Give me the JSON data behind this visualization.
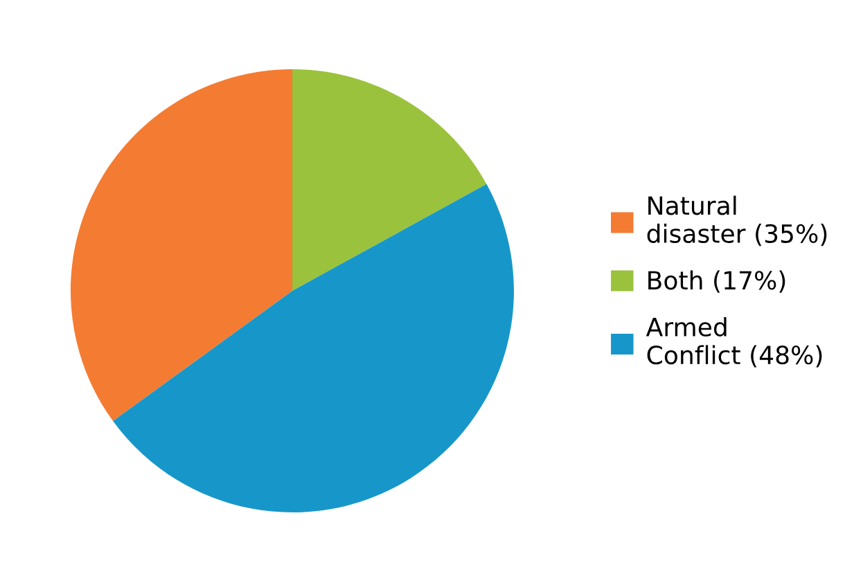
{
  "chart_data": {
    "type": "pie",
    "categories": [
      "Natural\ndisaster (35%)",
      "Both (17%)",
      "Armed\nConflict (48%)"
    ],
    "values": [
      35,
      17,
      48
    ],
    "colors": [
      "#f47b32",
      "#9bc23c",
      "#1797c9"
    ],
    "legend": "right"
  }
}
